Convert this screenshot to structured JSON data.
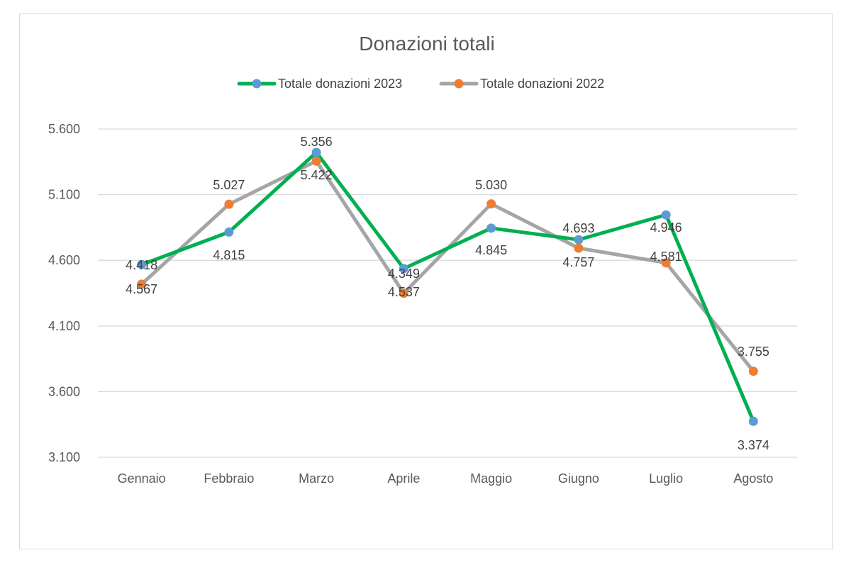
{
  "chart_data": {
    "type": "line",
    "title": "Donazioni totali",
    "xlabel": "",
    "ylabel": "",
    "categories": [
      "Gennaio",
      "Febbraio",
      "Marzo",
      "Aprile",
      "Maggio",
      "Giugno",
      "Luglio",
      "Agosto"
    ],
    "ylim": [
      3100,
      5600
    ],
    "yticks": [
      3100,
      3600,
      4100,
      4600,
      5100,
      5600
    ],
    "ytick_labels": [
      "3.100",
      "3.600",
      "4.100",
      "4.600",
      "5.100",
      "5.600"
    ],
    "grid": true,
    "legend": "top",
    "series": [
      {
        "name": "Totale donazioni 2023",
        "line_color": "#00b050",
        "marker_color": "#5b9bd5",
        "values": [
          4567,
          4815,
          5422,
          4537,
          4845,
          4757,
          4946,
          3374
        ],
        "labels": [
          "4.567",
          "4.815",
          "5.422",
          "4.537",
          "4.845",
          "4.757",
          "4.946",
          "3.374"
        ]
      },
      {
        "name": "Totale donazioni 2022",
        "line_color": "#a5a5a5",
        "marker_color": "#ed7d31",
        "values": [
          4418,
          5027,
          5356,
          4349,
          5030,
          4693,
          4581,
          3755
        ],
        "labels": [
          "4.418",
          "5.027",
          "5.356",
          "4.349",
          "5.030",
          "4.693",
          "4.581",
          "3.755"
        ]
      }
    ]
  }
}
